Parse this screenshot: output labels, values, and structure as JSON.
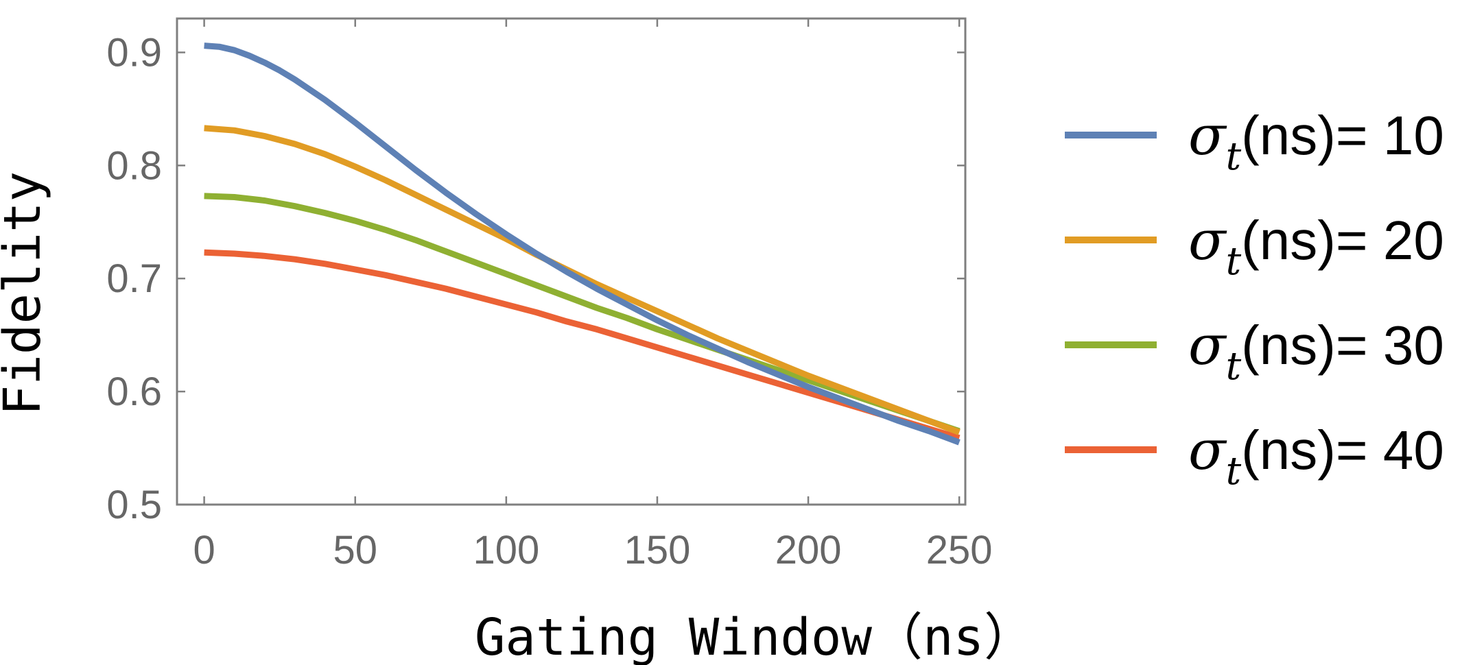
{
  "chart_data": {
    "type": "line",
    "title": "",
    "xlabel": "Gating Window（ns）",
    "ylabel": "Fidelity",
    "xlim": [
      -9,
      252
    ],
    "ylim": [
      0.5,
      0.93
    ],
    "xticks": [
      0,
      50,
      100,
      150,
      200,
      250
    ],
    "yticks": [
      0.5,
      0.6,
      0.7,
      0.8,
      0.9
    ],
    "xtick_labels": [
      "0",
      "50",
      "100",
      "150",
      "200",
      "250"
    ],
    "ytick_labels": [
      "0.5",
      "0.6",
      "0.7",
      "0.8",
      "0.9"
    ],
    "grid": false,
    "legend_position": "right",
    "series": [
      {
        "name": "σt(ns)= 10",
        "legend_label": {
          "symbol": "σ",
          "subscript": "t",
          "text": "(ns)= 10"
        },
        "color": "#5E81B5",
        "x": [
          0,
          5,
          10,
          15,
          20,
          25,
          30,
          40,
          50,
          60,
          70,
          80,
          90,
          100,
          110,
          120,
          130,
          140,
          150,
          160,
          170,
          180,
          190,
          200,
          210,
          220,
          230,
          240,
          250
        ],
        "y": [
          0.906,
          0.905,
          0.902,
          0.897,
          0.891,
          0.884,
          0.876,
          0.858,
          0.838,
          0.817,
          0.796,
          0.776,
          0.757,
          0.739,
          0.722,
          0.706,
          0.691,
          0.677,
          0.663,
          0.65,
          0.638,
          0.626,
          0.615,
          0.604,
          0.594,
          0.584,
          0.574,
          0.565,
          0.555
        ]
      },
      {
        "name": "σt(ns)= 20",
        "legend_label": {
          "symbol": "σ",
          "subscript": "t",
          "text": "(ns)= 20"
        },
        "color": "#E19C24",
        "x": [
          0,
          10,
          20,
          30,
          40,
          50,
          60,
          70,
          80,
          90,
          100,
          110,
          120,
          130,
          140,
          150,
          160,
          170,
          180,
          190,
          200,
          210,
          220,
          230,
          240,
          250
        ],
        "y": [
          0.833,
          0.831,
          0.826,
          0.819,
          0.81,
          0.799,
          0.787,
          0.774,
          0.761,
          0.748,
          0.735,
          0.721,
          0.708,
          0.695,
          0.683,
          0.671,
          0.659,
          0.647,
          0.636,
          0.625,
          0.614,
          0.604,
          0.594,
          0.584,
          0.574,
          0.564
        ]
      },
      {
        "name": "σt(ns)= 30",
        "legend_label": {
          "symbol": "σ",
          "subscript": "t",
          "text": "(ns)= 30"
        },
        "color": "#8FB032",
        "x": [
          0,
          10,
          20,
          30,
          40,
          50,
          60,
          70,
          80,
          90,
          100,
          110,
          120,
          130,
          140,
          150,
          160,
          170,
          180,
          190,
          200,
          210,
          220,
          230,
          240,
          250
        ],
        "y": [
          0.773,
          0.772,
          0.769,
          0.764,
          0.758,
          0.751,
          0.743,
          0.734,
          0.724,
          0.714,
          0.704,
          0.694,
          0.684,
          0.674,
          0.665,
          0.655,
          0.646,
          0.637,
          0.628,
          0.619,
          0.61,
          0.601,
          0.592,
          0.583,
          0.574,
          0.565
        ]
      },
      {
        "name": "σt(ns)= 40",
        "legend_label": {
          "symbol": "σ",
          "subscript": "t",
          "text": "(ns)= 40"
        },
        "color": "#EB6235",
        "x": [
          0,
          10,
          20,
          30,
          40,
          50,
          60,
          70,
          80,
          90,
          100,
          110,
          120,
          130,
          140,
          150,
          160,
          170,
          180,
          190,
          200,
          210,
          220,
          230,
          240,
          250
        ],
        "y": [
          0.723,
          0.722,
          0.72,
          0.717,
          0.713,
          0.708,
          0.703,
          0.697,
          0.691,
          0.684,
          0.677,
          0.67,
          0.662,
          0.655,
          0.647,
          0.639,
          0.631,
          0.623,
          0.615,
          0.607,
          0.599,
          0.591,
          0.583,
          0.575,
          0.567,
          0.559
        ]
      }
    ]
  }
}
